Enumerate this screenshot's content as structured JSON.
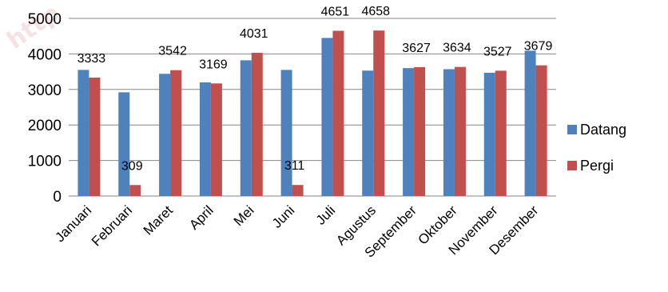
{
  "chart_data": {
    "type": "bar",
    "categories": [
      "Januari",
      "Februari",
      "Maret",
      "April",
      "Mei",
      "Juni",
      "Juli",
      "Agustus",
      "September",
      "Oktober",
      "November",
      "Desember"
    ],
    "series": [
      {
        "name": "Datang",
        "color": "#4f81bd",
        "values": [
          3550,
          2920,
          3440,
          3200,
          3820,
          3550,
          4450,
          3530,
          3600,
          3570,
          3470,
          4090
        ]
      },
      {
        "name": "Pergi",
        "color": "#c0504d",
        "values": [
          3333,
          309,
          3542,
          3169,
          4031,
          311,
          4651,
          4658,
          3627,
          3634,
          3527,
          3679
        ],
        "labels": [
          "3333",
          "309",
          "3542",
          "3169",
          "4031",
          "311",
          "4651",
          "4658",
          "3627",
          "3634",
          "3527",
          "3679"
        ]
      }
    ],
    "y_ticks": [
      "0",
      "1000",
      "2000",
      "3000",
      "4000",
      "5000"
    ],
    "ylim": [
      0,
      5000
    ],
    "grid": true,
    "legend": "right",
    "gridline_color": "#868686",
    "watermark_text": "http"
  }
}
